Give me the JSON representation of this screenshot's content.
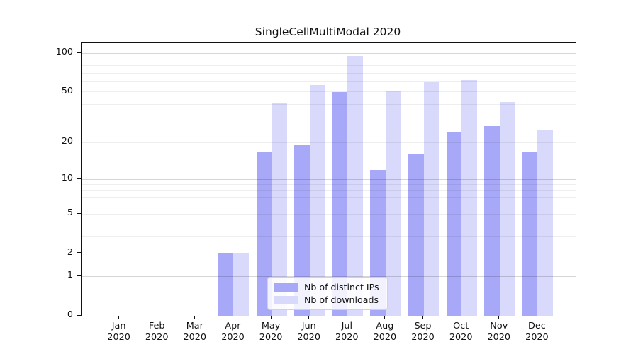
{
  "chart_data": {
    "type": "bar",
    "title": "SingleCellMultiModal 2020",
    "categories": [
      "Jan 2020",
      "Feb 2020",
      "Mar 2020",
      "Apr 2020",
      "May 2020",
      "Jun 2020",
      "Jul 2020",
      "Aug 2020",
      "Sep 2020",
      "Oct 2020",
      "Nov 2020",
      "Dec 2020"
    ],
    "series": [
      {
        "name": "Nb of distinct IPs",
        "color": "#a8a8f8",
        "values": [
          0,
          0,
          0,
          2,
          17,
          19,
          50,
          12,
          16,
          24,
          27,
          17
        ]
      },
      {
        "name": "Nb of downloads",
        "color": "#d9d9fb",
        "values": [
          0,
          0,
          0,
          2,
          41,
          57,
          95,
          51,
          60,
          62,
          42,
          25
        ]
      }
    ],
    "yticks": [
      0,
      1,
      2,
      5,
      10,
      20,
      50,
      100
    ],
    "yscale": "log10(value+1)",
    "ylim": [
      0,
      119
    ],
    "gridlines": {
      "major": [
        1,
        10,
        100
      ],
      "minor": [
        2,
        3,
        4,
        5,
        6,
        7,
        8,
        9,
        20,
        30,
        40,
        50,
        60,
        70,
        80,
        90
      ]
    },
    "grid": true,
    "legend_position": "lower center inside plot"
  }
}
